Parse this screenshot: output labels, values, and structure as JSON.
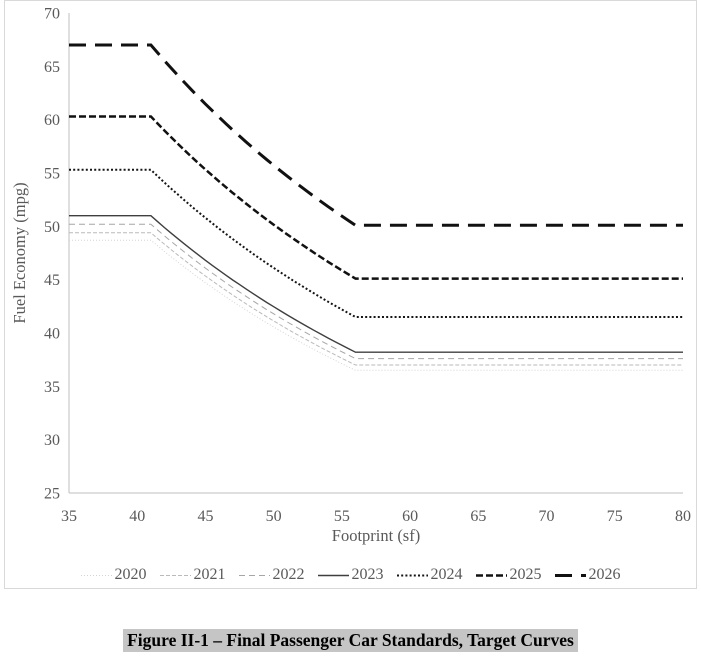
{
  "figure": {
    "caption": "Figure II-1 – Final Passenger Car Standards, Target Curves"
  },
  "chart_data": {
    "type": "line",
    "title": "",
    "xlabel": "Footprint (sf)",
    "ylabel": "Fuel Economy (mpg)",
    "xlim": [
      35,
      80
    ],
    "ylim": [
      25,
      70
    ],
    "x_ticks": [
      35,
      40,
      45,
      50,
      55,
      60,
      65,
      70,
      75,
      80
    ],
    "y_ticks": [
      70,
      65,
      60,
      55,
      50,
      45,
      40,
      35,
      30,
      25
    ],
    "grid": false,
    "legend_position": "bottom",
    "axis_color": "#bfbfbf",
    "text_color": "#595959",
    "curve_shape": "flat at max_mpg from 35 to 41 sf, reciprocal (1/mpg linear) decline from 41 to 56 sf, flat at min_mpg from 56 to 80 sf",
    "breakpoints_sf": [
      41,
      56
    ],
    "series": [
      {
        "name": "2020",
        "max_mpg": 48.7,
        "min_mpg": 36.5,
        "color": "#d4d4d4",
        "width": 1,
        "dash": "1 2"
      },
      {
        "name": "2021",
        "max_mpg": 49.4,
        "min_mpg": 37.0,
        "color": "#bababa",
        "width": 1,
        "dash": "4 2"
      },
      {
        "name": "2022",
        "max_mpg": 50.2,
        "min_mpg": 37.6,
        "color": "#a6a6a6",
        "width": 1,
        "dash": "6 4"
      },
      {
        "name": "2023",
        "max_mpg": 51.0,
        "min_mpg": 38.2,
        "color": "#3f3f3f",
        "width": 1.4,
        "dash": "solid"
      },
      {
        "name": "2024",
        "max_mpg": 55.3,
        "min_mpg": 41.5,
        "color": "#151515",
        "width": 2,
        "dash": "2 2.2"
      },
      {
        "name": "2025",
        "max_mpg": 60.3,
        "min_mpg": 45.1,
        "color": "#111111",
        "width": 2.5,
        "dash": "7 3"
      },
      {
        "name": "2026",
        "max_mpg": 67.0,
        "min_mpg": 50.1,
        "color": "#111111",
        "width": 3,
        "dash": "17 9"
      }
    ]
  }
}
